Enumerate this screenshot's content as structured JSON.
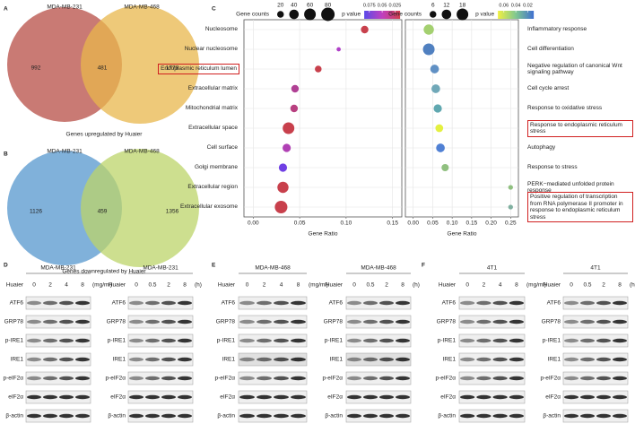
{
  "venn": [
    {
      "letter": "A",
      "sets": [
        "MDA-MB-231",
        "MDA-MB-468"
      ],
      "counts": [
        992,
        481,
        1778
      ],
      "caption": "Genes upregulated by Huaier",
      "colors": [
        "#c0635c",
        "#e8b74c"
      ]
    },
    {
      "letter": "B",
      "sets": [
        "MDA-MB-231",
        "MDA-MB-468"
      ],
      "counts": [
        1126,
        459,
        1356
      ],
      "caption": "Genes downregulated by Huaier",
      "colors": [
        "#6aa3d4",
        "#bcd46a"
      ]
    }
  ],
  "dotplot": {
    "letter": "C",
    "xlabel": "Gene Ratio",
    "size_title": "Gene counts",
    "color_title": "p value",
    "panels": [
      {
        "categories": [
          "Nucleosome",
          "Nuclear nucleosome",
          "Endoplasmic reticulum lumen",
          "Extracellular matrix",
          "Mitochondrial matrix",
          "Extracellular space",
          "Cell surface",
          "Golgi membrane",
          "Extracellular region",
          "Extracellular exosome"
        ],
        "gene_ratio": [
          0.12,
          0.092,
          0.07,
          0.045,
          0.044,
          0.038,
          0.036,
          0.032,
          0.032,
          0.03
        ],
        "gene_counts": [
          25,
          8,
          20,
          25,
          25,
          60,
          30,
          30,
          55,
          70
        ],
        "colors": [
          "#c8404c",
          "#b040c8",
          "#c8404c",
          "#b04094",
          "#b84080",
          "#c8404c",
          "#b040b4",
          "#7040e4",
          "#c8404c",
          "#c8404c"
        ],
        "highlight": [
          2
        ],
        "xlim": [
          -0.01,
          0.16
        ],
        "xticks": [
          {
            "value": 0,
            "label": "0.00"
          },
          0.05,
          {
            "value": 0.1,
            "label": "0.10"
          },
          0.15
        ],
        "size_ticks": [
          20,
          40,
          60,
          80
        ],
        "pvalue_ticks": [
          0.075,
          0.05,
          0.025
        ],
        "pvalue_lim": [
          0.085,
          0.015
        ],
        "colorbar": [
          "#5a4ae8",
          "#c040c0",
          "#d0404c"
        ]
      },
      {
        "categories": [
          "Inflammatory response",
          "Cell differentiation",
          "Negative regulation of canonical Wnt signaling pathway",
          "Cell cycle arrest",
          "Response to oxidative stress",
          "Response to endoplasmic reticulum stress",
          "Autophagy",
          "Response to stress",
          "PERK−mediated unfolded protein response",
          "Positive regulation of transcription from RNA polymerase II promoter in response to endoplasmic reticulum stress"
        ],
        "gene_ratio": [
          0.04,
          0.04,
          0.055,
          0.058,
          0.063,
          0.067,
          0.07,
          0.082,
          0.25,
          0.25
        ],
        "gene_counts": [
          14,
          18,
          10,
          10,
          9,
          8,
          10,
          7,
          3,
          3
        ],
        "colors": [
          "#a4d070",
          "#5080c0",
          "#6090c4",
          "#70a8b8",
          "#60a8b0",
          "#e4f040",
          "#5080d4",
          "#90c080",
          "#90c080",
          "#80b0a0"
        ],
        "highlight": [
          5,
          9
        ],
        "xlim": [
          -0.02,
          0.27
        ],
        "xticks": [
          {
            "value": 0,
            "label": "0.00"
          },
          0.05,
          {
            "value": 0.1,
            "label": "0.10"
          },
          0.15,
          {
            "value": 0.2,
            "label": "0.20"
          },
          0.25
        ],
        "size_ticks": [
          6,
          12,
          18
        ],
        "pvalue_ticks": [
          0.06,
          0.04,
          0.02
        ],
        "pvalue_lim": [
          0.07,
          0.01
        ],
        "colorbar": [
          "#f0f040",
          "#80c890",
          "#4070d0"
        ]
      }
    ]
  },
  "blots": [
    {
      "letter": "D",
      "groups": [
        {
          "cell_line": "MDA-MB-231",
          "treatment": "Huaier",
          "lanes": [
            0,
            2,
            4,
            8
          ],
          "unit": "(mg/ml)",
          "proteins": [
            "ATF6",
            "GRP78",
            "p-IRE1",
            "IRE1",
            "p-eIF2α",
            "eIF2α",
            "β-actin"
          ]
        },
        {
          "cell_line": "MDA-MB-231",
          "treatment": "Huaier",
          "lanes": [
            0,
            0.5,
            2,
            8
          ],
          "unit": "(h)",
          "proteins": [
            "ATF6",
            "GRP78",
            "p-IRE1",
            "IRE1",
            "p-eIF2α",
            "eIF2α",
            "β-actin"
          ]
        }
      ]
    },
    {
      "letter": "E",
      "groups": [
        {
          "cell_line": "MDA-MB-468",
          "treatment": "Huaier",
          "lanes": [
            0,
            2,
            4,
            8
          ],
          "unit": "(mg/ml)",
          "proteins": [
            "ATF6",
            "GRP78",
            "p-IRE1",
            "IRE1",
            "p-eIF2α",
            "eIF2α",
            "β-actin"
          ]
        },
        {
          "cell_line": "MDA-MB-468",
          "treatment": "Huaier",
          "lanes": [
            0,
            0.5,
            2,
            8
          ],
          "unit": "(h)",
          "proteins": [
            "ATF6",
            "GRP78",
            "p-IRE1",
            "IRE1",
            "p-eIF2α",
            "eIF2α",
            "β-actin"
          ]
        }
      ]
    },
    {
      "letter": "F",
      "groups": [
        {
          "cell_line": "4T1",
          "treatment": "Huaier",
          "lanes": [
            0,
            2,
            4,
            8
          ],
          "unit": "(mg/ml)",
          "proteins": [
            "ATF6",
            "GRP78",
            "p-IRE1",
            "IRE1",
            "p-eIF2α",
            "eIF2α",
            "β-actin"
          ]
        },
        {
          "cell_line": "4T1",
          "treatment": "Huaier",
          "lanes": [
            0,
            0.5,
            2,
            8
          ],
          "unit": "(h)",
          "proteins": [
            "ATF6",
            "GRP78",
            "p-IRE1",
            "IRE1",
            "p-eIF2α",
            "eIF2α",
            "β-actin"
          ]
        }
      ]
    }
  ]
}
